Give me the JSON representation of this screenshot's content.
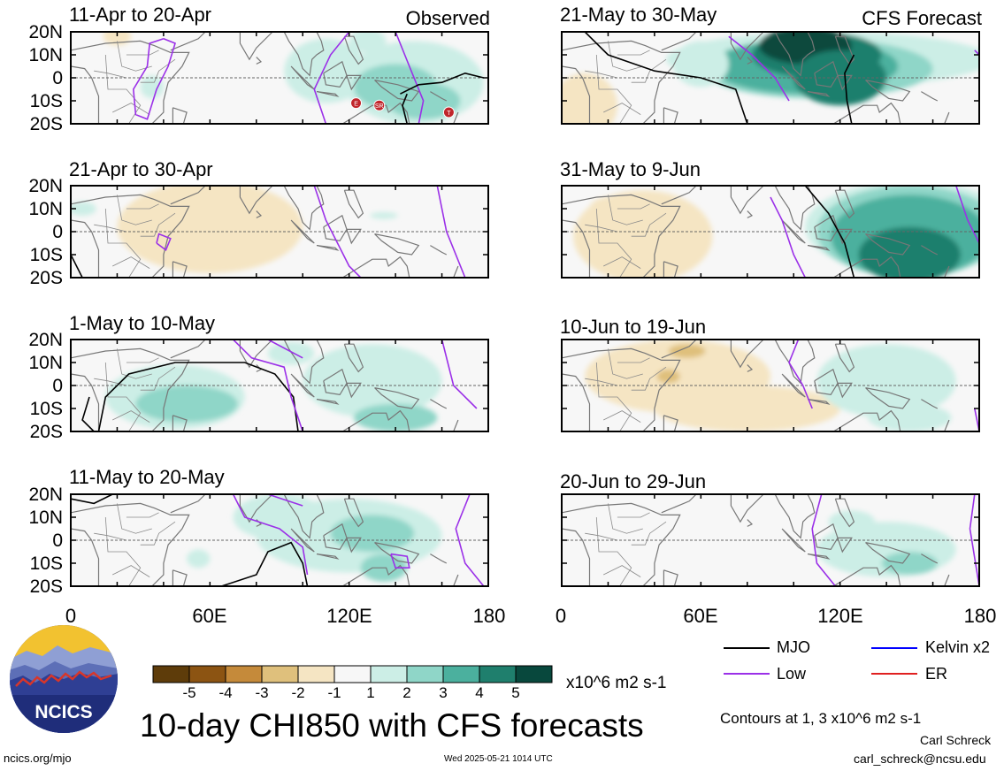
{
  "header": {
    "title": "10-day CHI850 with CFS forecasts",
    "timestamp": "Wed 2025-05-21 1014 UTC",
    "site": "ncics.org/mjo",
    "author": "Carl Schreck",
    "email": "carl_schreck@ncsu.edu",
    "logo_text": "NCICS"
  },
  "column_tags": {
    "left": "Observed",
    "right": "CFS Forecast"
  },
  "lat_labels": [
    "20N",
    "10N",
    "0",
    "10S",
    "20S"
  ],
  "lon_labels": [
    "0",
    "60E",
    "120E",
    "180"
  ],
  "chart_data": {
    "type": "heatmap",
    "variable": "CHI850",
    "units": "x10^6 m2 s-1",
    "lat_range": [
      -20,
      20
    ],
    "lon_range": [
      0,
      180
    ],
    "colorbar": {
      "ticks": [
        "-5",
        "-4",
        "-3",
        "-2",
        "-1",
        "1",
        "2",
        "3",
        "4",
        "5"
      ],
      "colors": [
        "#5e3c0a",
        "#8c5412",
        "#c58a3a",
        "#dfc07c",
        "#f5e5c3",
        "#f7f7f7",
        "#cceee6",
        "#8fd6c8",
        "#4bb09e",
        "#1f7f6d",
        "#08483d"
      ]
    },
    "panels": [
      {
        "id": "obs-1",
        "title": "11-Apr to 20-Apr",
        "tag": "Observed"
      },
      {
        "id": "cfs-1",
        "title": "21-May to 30-May",
        "tag": "CFS Forecast"
      },
      {
        "id": "obs-2",
        "title": "21-Apr to 30-Apr"
      },
      {
        "id": "cfs-2",
        "title": "31-May to 9-Jun"
      },
      {
        "id": "obs-3",
        "title": "1-May to 10-May"
      },
      {
        "id": "cfs-3",
        "title": "10-Jun to 19-Jun"
      },
      {
        "id": "obs-4",
        "title": "11-May to 20-May"
      },
      {
        "id": "cfs-4",
        "title": "20-Jun to 29-Jun"
      }
    ],
    "markers": [
      {
        "label": "E",
        "lon": 123,
        "lat": -11
      },
      {
        "label": "SR",
        "lon": 133,
        "lat": -12
      },
      {
        "label": "T",
        "lon": 163,
        "lat": -15
      }
    ]
  },
  "legend": {
    "items": [
      {
        "name": "MJO",
        "color": "#000000"
      },
      {
        "name": "Kelvin x2",
        "color": "#0000ff"
      },
      {
        "name": "Low",
        "color": "#9b30e8"
      },
      {
        "name": "ER",
        "color": "#e02020"
      }
    ],
    "contours_note": "Contours at 1, 3 x10^6 m2 s-1"
  }
}
